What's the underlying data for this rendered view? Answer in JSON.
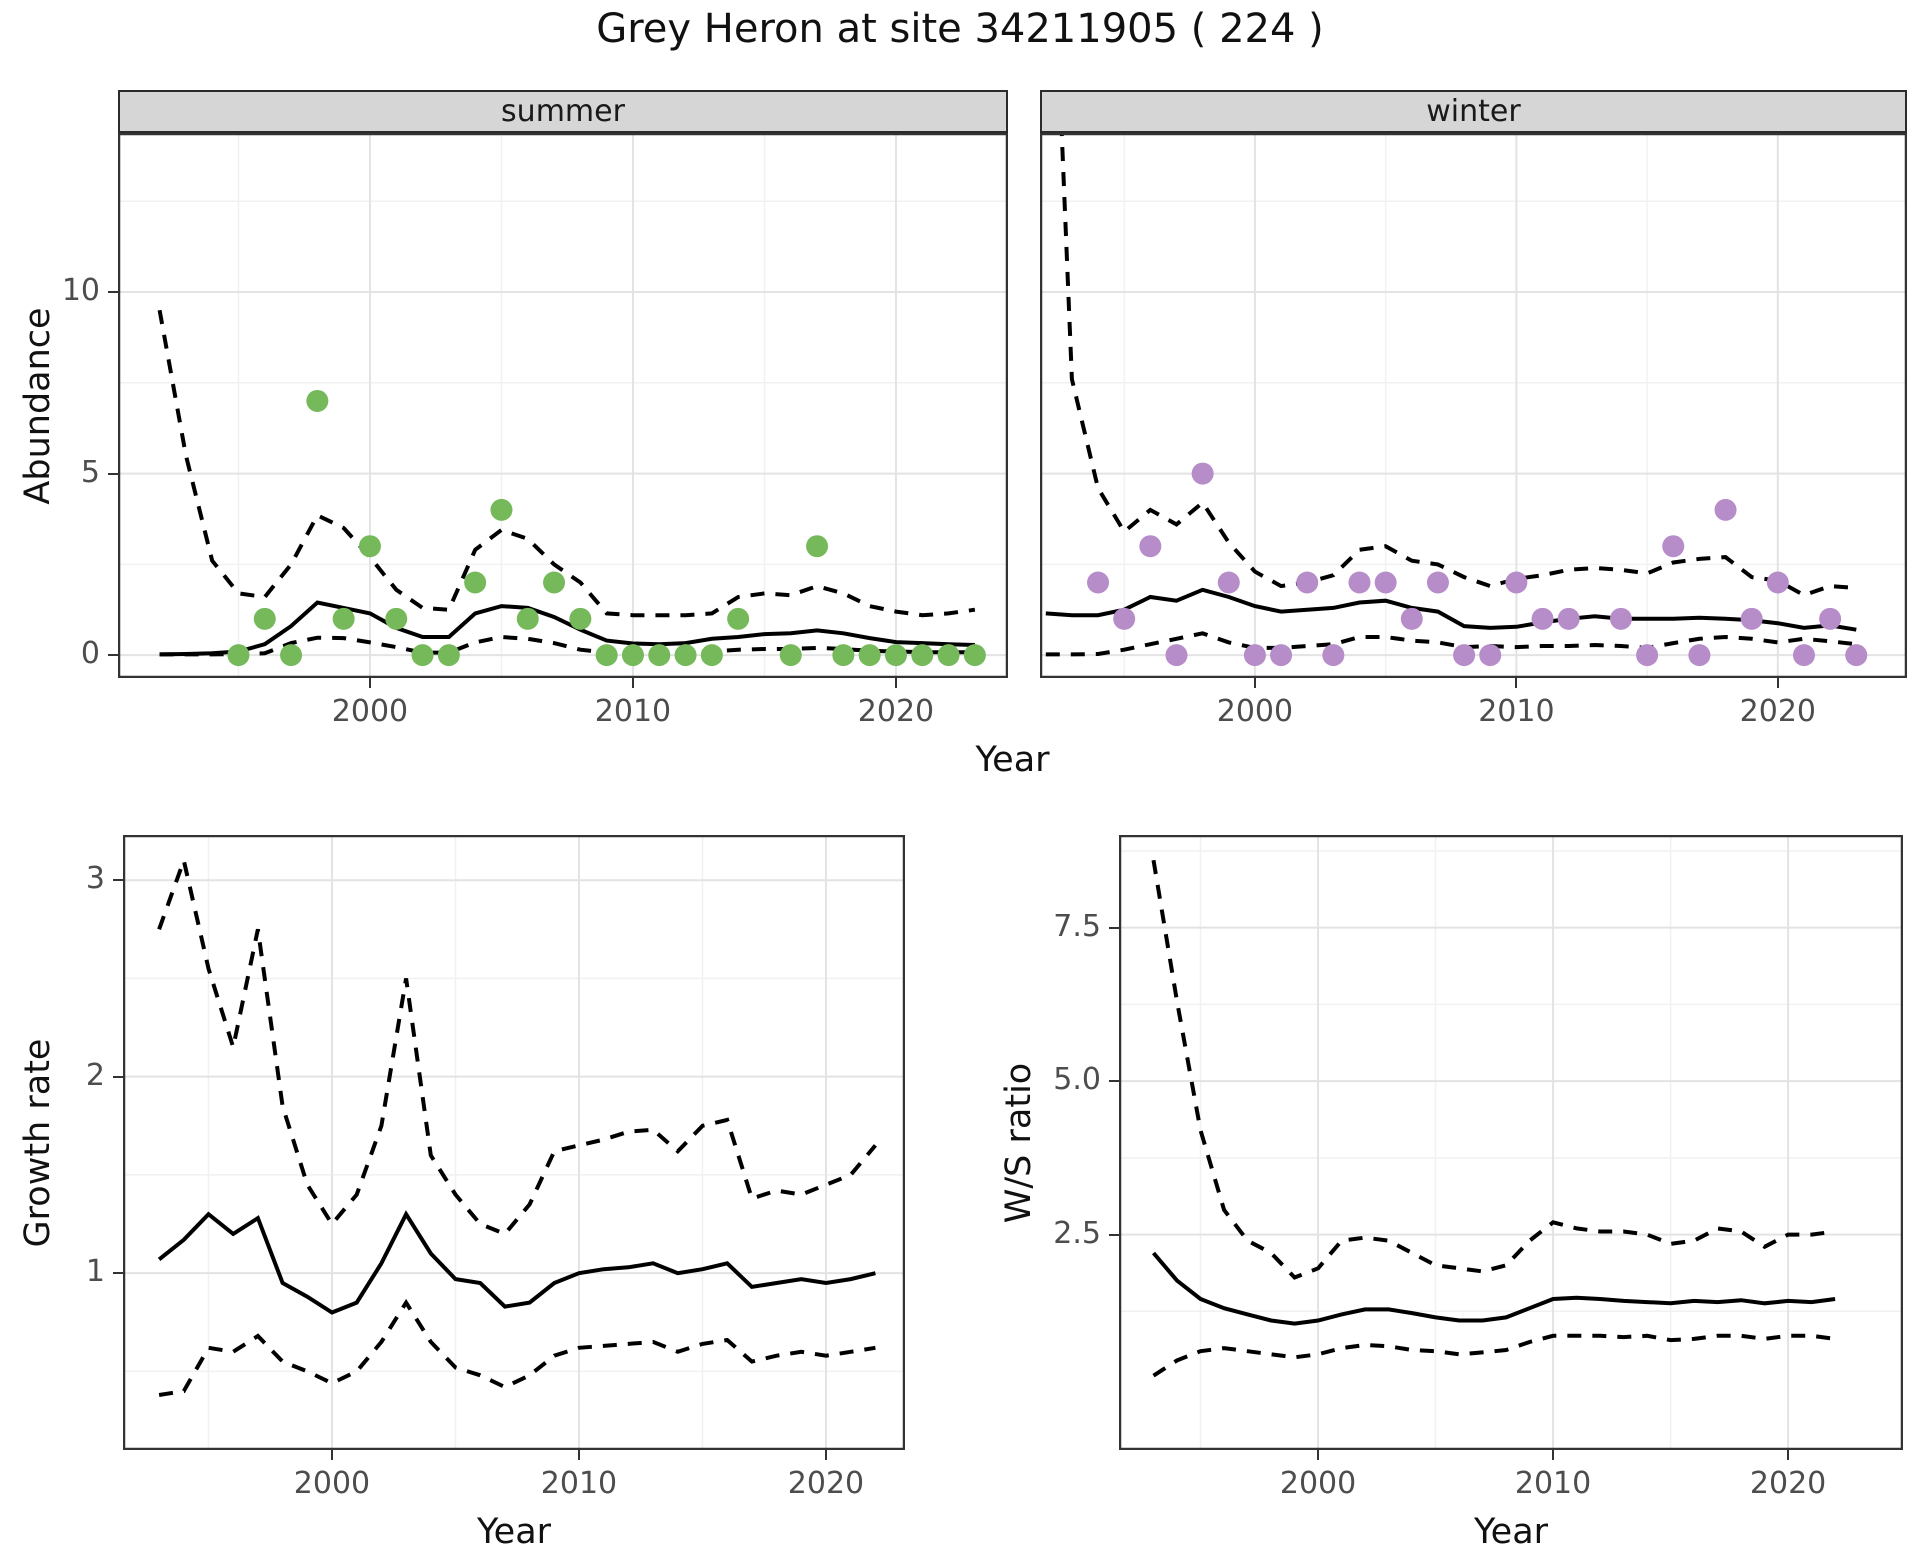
{
  "title": "Grey Heron at site 34211905 ( 224 )",
  "axes": {
    "x_title": "Year",
    "abundance_title": "Abundance",
    "growth_title": "Growth rate",
    "ws_title": "W/S ratio"
  },
  "colors": {
    "summer_point": "#76b95b",
    "winter_point": "#b68cc9",
    "line": "#000000",
    "strip_bg": "#d6d6d6",
    "grid_major": "#e3e3e3",
    "grid_minor": "#f1f1f1",
    "axis_text": "#4d4d4d",
    "panel_border": "#333333"
  },
  "chart_data": [
    {
      "id": "abundance-summer",
      "type": "line",
      "facet": "summer",
      "ylabel": "Abundance",
      "xlabel": "Year",
      "x_ticks": {
        "values": [
          2000,
          2010,
          2020
        ],
        "labels": [
          "2000",
          "2010",
          "2020"
        ]
      },
      "y_ticks": {
        "values": [
          0,
          5,
          10
        ],
        "labels": [
          "0",
          "5",
          "10"
        ],
        "show_labels": true
      },
      "points": {
        "x": [
          1995,
          1996,
          1997,
          1998,
          1999,
          2000,
          2001,
          2002,
          2003,
          2004,
          2005,
          2006,
          2007,
          2008,
          2009,
          2010,
          2011,
          2012,
          2013,
          2014,
          2016,
          2017,
          2018,
          2019,
          2020,
          2021,
          2022,
          2023
        ],
        "y": [
          0,
          1,
          0,
          7,
          1,
          3,
          1,
          0,
          0,
          2,
          4,
          1,
          2,
          1,
          0,
          0,
          0,
          0,
          0,
          1,
          0,
          3,
          0,
          0,
          0,
          0,
          0,
          0
        ]
      },
      "series": [
        {
          "name": "mean",
          "style": "solid",
          "x": [
            1992,
            1993,
            1994,
            1995,
            1996,
            1997,
            1998,
            1999,
            2000,
            2001,
            2002,
            2003,
            2004,
            2005,
            2006,
            2007,
            2008,
            2009,
            2010,
            2011,
            2012,
            2013,
            2014,
            2015,
            2016,
            2017,
            2018,
            2019,
            2020,
            2021,
            2022,
            2023
          ],
          "y": [
            0.02,
            0.03,
            0.05,
            0.1,
            0.3,
            0.8,
            1.45,
            1.3,
            1.15,
            0.75,
            0.5,
            0.5,
            1.15,
            1.35,
            1.3,
            1.05,
            0.7,
            0.4,
            0.32,
            0.3,
            0.33,
            0.45,
            0.5,
            0.58,
            0.6,
            0.68,
            0.6,
            0.47,
            0.36,
            0.33,
            0.3,
            0.28
          ]
        },
        {
          "name": "upper_ci",
          "style": "dashed",
          "x": [
            1992,
            1993,
            1994,
            1995,
            1996,
            1997,
            1998,
            1999,
            2000,
            2001,
            2002,
            2003,
            2004,
            2005,
            2006,
            2007,
            2008,
            2009,
            2010,
            2011,
            2012,
            2013,
            2014,
            2015,
            2016,
            2017,
            2018,
            2019,
            2020,
            2021,
            2022,
            2023
          ],
          "y": [
            9.5,
            5.5,
            2.6,
            1.7,
            1.6,
            2.5,
            3.85,
            3.5,
            2.7,
            1.8,
            1.3,
            1.25,
            2.9,
            3.45,
            3.2,
            2.5,
            2.0,
            1.15,
            1.1,
            1.1,
            1.1,
            1.15,
            1.6,
            1.7,
            1.65,
            1.9,
            1.7,
            1.35,
            1.2,
            1.1,
            1.15,
            1.25
          ]
        },
        {
          "name": "lower_ci",
          "style": "dashed",
          "x": [
            1992,
            1993,
            1994,
            1995,
            1996,
            1997,
            1998,
            1999,
            2000,
            2001,
            2002,
            2003,
            2004,
            2005,
            2006,
            2007,
            2008,
            2009,
            2010,
            2011,
            2012,
            2013,
            2014,
            2015,
            2016,
            2017,
            2018,
            2019,
            2020,
            2021,
            2022,
            2023
          ],
          "y": [
            0.02,
            0.02,
            0.02,
            0.03,
            0.05,
            0.33,
            0.48,
            0.47,
            0.35,
            0.22,
            0.07,
            0.07,
            0.35,
            0.5,
            0.45,
            0.33,
            0.15,
            0.07,
            0.06,
            0.06,
            0.07,
            0.1,
            0.15,
            0.17,
            0.17,
            0.2,
            0.17,
            0.12,
            0.1,
            0.08,
            0.08,
            0.08
          ]
        }
      ]
    },
    {
      "id": "abundance-winter",
      "type": "line",
      "facet": "winter",
      "ylabel": "Abundance",
      "xlabel": "Year",
      "x_ticks": {
        "values": [
          2000,
          2010,
          2020
        ],
        "labels": [
          "2000",
          "2010",
          "2020"
        ]
      },
      "y_ticks": {
        "values": [
          0,
          5,
          10
        ],
        "labels": [
          "0",
          "5",
          "10"
        ],
        "show_labels": false
      },
      "points": {
        "x": [
          1994,
          1995,
          1996,
          1997,
          1998,
          1999,
          2000,
          2001,
          2002,
          2003,
          2004,
          2005,
          2006,
          2007,
          2008,
          2009,
          2010,
          2011,
          2012,
          2014,
          2015,
          2016,
          2017,
          2018,
          2019,
          2020,
          2021,
          2022,
          2023
        ],
        "y": [
          2,
          1,
          3,
          0,
          5,
          2,
          0,
          0,
          2,
          0,
          2,
          2,
          1,
          2,
          0,
          0,
          2,
          1,
          1,
          1,
          0,
          3,
          0,
          4,
          1,
          2,
          0,
          1,
          0
        ]
      },
      "series": [
        {
          "name": "mean",
          "style": "solid",
          "x": [
            1992,
            1993,
            1994,
            1995,
            1996,
            1997,
            1998,
            1999,
            2000,
            2001,
            2002,
            2003,
            2004,
            2005,
            2006,
            2007,
            2008,
            2009,
            2010,
            2011,
            2012,
            2013,
            2014,
            2015,
            2016,
            2017,
            2018,
            2019,
            2020,
            2021,
            2022,
            2023
          ],
          "y": [
            1.15,
            1.1,
            1.1,
            1.25,
            1.6,
            1.5,
            1.8,
            1.6,
            1.35,
            1.2,
            1.25,
            1.3,
            1.45,
            1.5,
            1.3,
            1.2,
            0.8,
            0.75,
            0.78,
            0.9,
            1.0,
            1.07,
            1.0,
            1.0,
            1.0,
            1.03,
            1.0,
            0.96,
            0.88,
            0.75,
            0.82,
            0.7
          ]
        },
        {
          "name": "upper_ci",
          "style": "dashed",
          "x": [
            1992,
            1993,
            1994,
            1995,
            1996,
            1997,
            1998,
            1999,
            2000,
            2001,
            2002,
            2003,
            2004,
            2005,
            2006,
            2007,
            2008,
            2009,
            2010,
            2011,
            2012,
            2013,
            2014,
            2015,
            2016,
            2017,
            2018,
            2019,
            2020,
            2021,
            2022,
            2023
          ],
          "y": [
            25,
            7.6,
            4.6,
            3.4,
            4.0,
            3.6,
            4.2,
            3.1,
            2.3,
            1.9,
            2.0,
            2.2,
            2.9,
            3.0,
            2.6,
            2.5,
            2.15,
            1.9,
            2.1,
            2.2,
            2.35,
            2.4,
            2.35,
            2.25,
            2.55,
            2.65,
            2.7,
            2.15,
            2.05,
            1.65,
            1.9,
            1.85
          ]
        },
        {
          "name": "lower_ci",
          "style": "dashed",
          "x": [
            1992,
            1993,
            1994,
            1995,
            1996,
            1997,
            1998,
            1999,
            2000,
            2001,
            2002,
            2003,
            2004,
            2005,
            2006,
            2007,
            2008,
            2009,
            2010,
            2011,
            2012,
            2013,
            2014,
            2015,
            2016,
            2017,
            2018,
            2019,
            2020,
            2021,
            2022,
            2023
          ],
          "y": [
            0.02,
            0.02,
            0.03,
            0.15,
            0.3,
            0.45,
            0.6,
            0.35,
            0.2,
            0.2,
            0.25,
            0.3,
            0.5,
            0.5,
            0.4,
            0.35,
            0.22,
            0.25,
            0.22,
            0.25,
            0.25,
            0.28,
            0.25,
            0.2,
            0.33,
            0.45,
            0.5,
            0.45,
            0.35,
            0.45,
            0.38,
            0.3
          ]
        }
      ]
    },
    {
      "id": "growth-rate",
      "type": "line",
      "facet": null,
      "ylabel": "Growth rate",
      "xlabel": "Year",
      "x_ticks": {
        "values": [
          2000,
          2010,
          2020
        ],
        "labels": [
          "2000",
          "2010",
          "2020"
        ]
      },
      "y_ticks": {
        "values": [
          1,
          2,
          3
        ],
        "labels": [
          "1",
          "2",
          "3"
        ],
        "show_labels": true
      },
      "points": {
        "x": [],
        "y": []
      },
      "series": [
        {
          "name": "mean",
          "style": "solid",
          "x": [
            1993,
            1994,
            1995,
            1996,
            1997,
            1998,
            1999,
            2000,
            2001,
            2002,
            2003,
            2004,
            2005,
            2006,
            2007,
            2008,
            2009,
            2010,
            2011,
            2012,
            2013,
            2014,
            2015,
            2016,
            2017,
            2018,
            2019,
            2020,
            2021,
            2022
          ],
          "y": [
            1.07,
            1.17,
            1.3,
            1.2,
            1.28,
            0.95,
            0.88,
            0.8,
            0.85,
            1.05,
            1.3,
            1.1,
            0.97,
            0.95,
            0.83,
            0.85,
            0.95,
            1.0,
            1.02,
            1.03,
            1.05,
            1.0,
            1.02,
            1.05,
            0.93,
            0.95,
            0.97,
            0.95,
            0.97,
            1.0
          ]
        },
        {
          "name": "upper_ci",
          "style": "dashed",
          "x": [
            1993,
            1994,
            1995,
            1996,
            1997,
            1998,
            1999,
            2000,
            2001,
            2002,
            2003,
            2004,
            2005,
            2006,
            2007,
            2008,
            2009,
            2010,
            2011,
            2012,
            2013,
            2014,
            2015,
            2016,
            2017,
            2018,
            2019,
            2020,
            2021,
            2022
          ],
          "y": [
            2.75,
            3.1,
            2.55,
            2.15,
            2.75,
            1.85,
            1.45,
            1.25,
            1.4,
            1.75,
            2.5,
            1.6,
            1.4,
            1.25,
            1.2,
            1.35,
            1.62,
            1.65,
            1.68,
            1.72,
            1.73,
            1.62,
            1.75,
            1.78,
            1.38,
            1.42,
            1.4,
            1.45,
            1.5,
            1.65
          ]
        },
        {
          "name": "lower_ci",
          "style": "dashed",
          "x": [
            1993,
            1994,
            1995,
            1996,
            1997,
            1998,
            1999,
            2000,
            2001,
            2002,
            2003,
            2004,
            2005,
            2006,
            2007,
            2008,
            2009,
            2010,
            2011,
            2012,
            2013,
            2014,
            2015,
            2016,
            2017,
            2018,
            2019,
            2020,
            2021,
            2022
          ],
          "y": [
            0.38,
            0.4,
            0.62,
            0.6,
            0.68,
            0.55,
            0.5,
            0.44,
            0.5,
            0.65,
            0.85,
            0.65,
            0.52,
            0.48,
            0.42,
            0.48,
            0.58,
            0.62,
            0.63,
            0.64,
            0.65,
            0.6,
            0.64,
            0.66,
            0.55,
            0.58,
            0.6,
            0.58,
            0.6,
            0.62
          ]
        }
      ]
    },
    {
      "id": "ws-ratio",
      "type": "line",
      "facet": null,
      "ylabel": "W/S ratio",
      "xlabel": "Year",
      "x_ticks": {
        "values": [
          2000,
          2010,
          2020
        ],
        "labels": [
          "2000",
          "2010",
          "2020"
        ]
      },
      "y_ticks": {
        "values": [
          2.5,
          5.0,
          7.5
        ],
        "labels": [
          "2.5",
          "5.0",
          "7.5"
        ],
        "show_labels": true
      },
      "points": {
        "x": [],
        "y": []
      },
      "series": [
        {
          "name": "mean",
          "style": "solid",
          "x": [
            1993,
            1994,
            1995,
            1996,
            1997,
            1998,
            1999,
            2000,
            2001,
            2002,
            2003,
            2004,
            2005,
            2006,
            2007,
            2008,
            2009,
            2010,
            2011,
            2012,
            2013,
            2014,
            2015,
            2016,
            2017,
            2018,
            2019,
            2020,
            2021,
            2022
          ],
          "y": [
            2.2,
            1.75,
            1.45,
            1.3,
            1.2,
            1.1,
            1.05,
            1.1,
            1.2,
            1.28,
            1.28,
            1.22,
            1.15,
            1.1,
            1.1,
            1.15,
            1.3,
            1.45,
            1.47,
            1.45,
            1.42,
            1.4,
            1.38,
            1.42,
            1.4,
            1.43,
            1.38,
            1.42,
            1.4,
            1.45
          ]
        },
        {
          "name": "upper_ci",
          "style": "dashed",
          "x": [
            1993,
            1994,
            1995,
            1996,
            1997,
            1998,
            1999,
            2000,
            2001,
            2002,
            2003,
            2004,
            2005,
            2006,
            2007,
            2008,
            2009,
            2010,
            2011,
            2012,
            2013,
            2014,
            2015,
            2016,
            2017,
            2018,
            2019,
            2020,
            2021,
            2022
          ],
          "y": [
            8.6,
            6.3,
            4.2,
            2.9,
            2.4,
            2.2,
            1.8,
            1.95,
            2.4,
            2.45,
            2.4,
            2.2,
            2.0,
            1.95,
            1.9,
            2.0,
            2.4,
            2.7,
            2.6,
            2.55,
            2.55,
            2.5,
            2.35,
            2.4,
            2.6,
            2.55,
            2.3,
            2.5,
            2.5,
            2.55
          ]
        },
        {
          "name": "lower_ci",
          "style": "dashed",
          "x": [
            1993,
            1994,
            1995,
            1996,
            1997,
            1998,
            1999,
            2000,
            2001,
            2002,
            2003,
            2004,
            2005,
            2006,
            2007,
            2008,
            2009,
            2010,
            2011,
            2012,
            2013,
            2014,
            2015,
            2016,
            2017,
            2018,
            2019,
            2020,
            2021,
            2022
          ],
          "y": [
            0.2,
            0.45,
            0.6,
            0.65,
            0.6,
            0.55,
            0.5,
            0.55,
            0.65,
            0.7,
            0.68,
            0.62,
            0.6,
            0.55,
            0.58,
            0.62,
            0.75,
            0.85,
            0.85,
            0.85,
            0.83,
            0.85,
            0.78,
            0.8,
            0.85,
            0.85,
            0.8,
            0.85,
            0.85,
            0.8
          ]
        }
      ]
    }
  ]
}
